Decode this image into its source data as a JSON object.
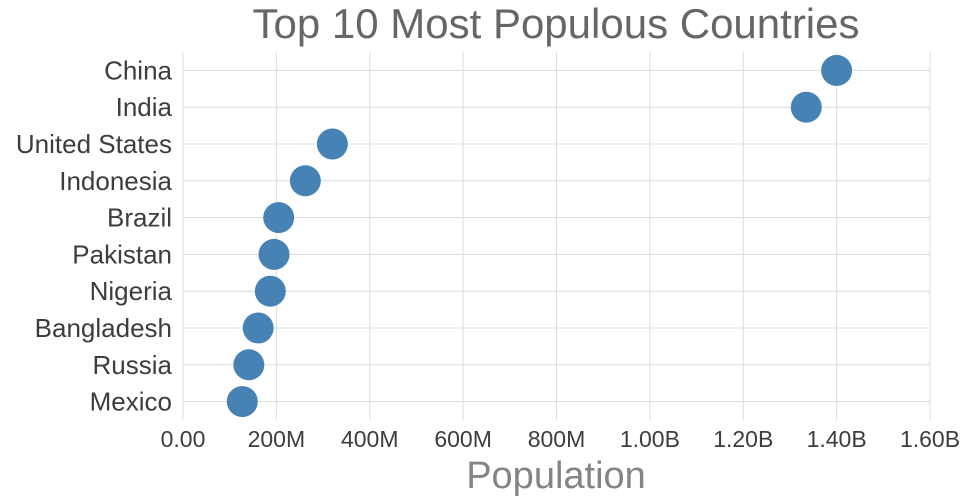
{
  "chart_data": {
    "type": "scatter",
    "orientation": "horizontal",
    "title": "Top 10 Most Populous Countries",
    "xlabel": "Population",
    "ylabel": "",
    "categories": [
      "China",
      "India",
      "United States",
      "Indonesia",
      "Brazil",
      "Pakistan",
      "Nigeria",
      "Bangladesh",
      "Russia",
      "Mexico"
    ],
    "values_millions": [
      1400,
      1335,
      320,
      262,
      205,
      195,
      187,
      161,
      141,
      127
    ],
    "xlim_millions": [
      0,
      1600
    ],
    "x_ticks": [
      {
        "value": 0,
        "label": "0.00"
      },
      {
        "value": 200,
        "label": "200M"
      },
      {
        "value": 400,
        "label": "400M"
      },
      {
        "value": 600,
        "label": "600M"
      },
      {
        "value": 800,
        "label": "800M"
      },
      {
        "value": 1000,
        "label": "1.00B"
      },
      {
        "value": 1200,
        "label": "1.20B"
      },
      {
        "value": 1400,
        "label": "1.40B"
      },
      {
        "value": 1600,
        "label": "1.60B"
      }
    ],
    "grid": true,
    "legend": "none",
    "colors": {
      "marker": "#4682b4",
      "grid": "#dcdcdc",
      "title": "#666666",
      "category_label": "#3d3d3d",
      "tick_label": "#3d3d3d",
      "axis_label": "#848484",
      "background": "#ffffff"
    }
  }
}
